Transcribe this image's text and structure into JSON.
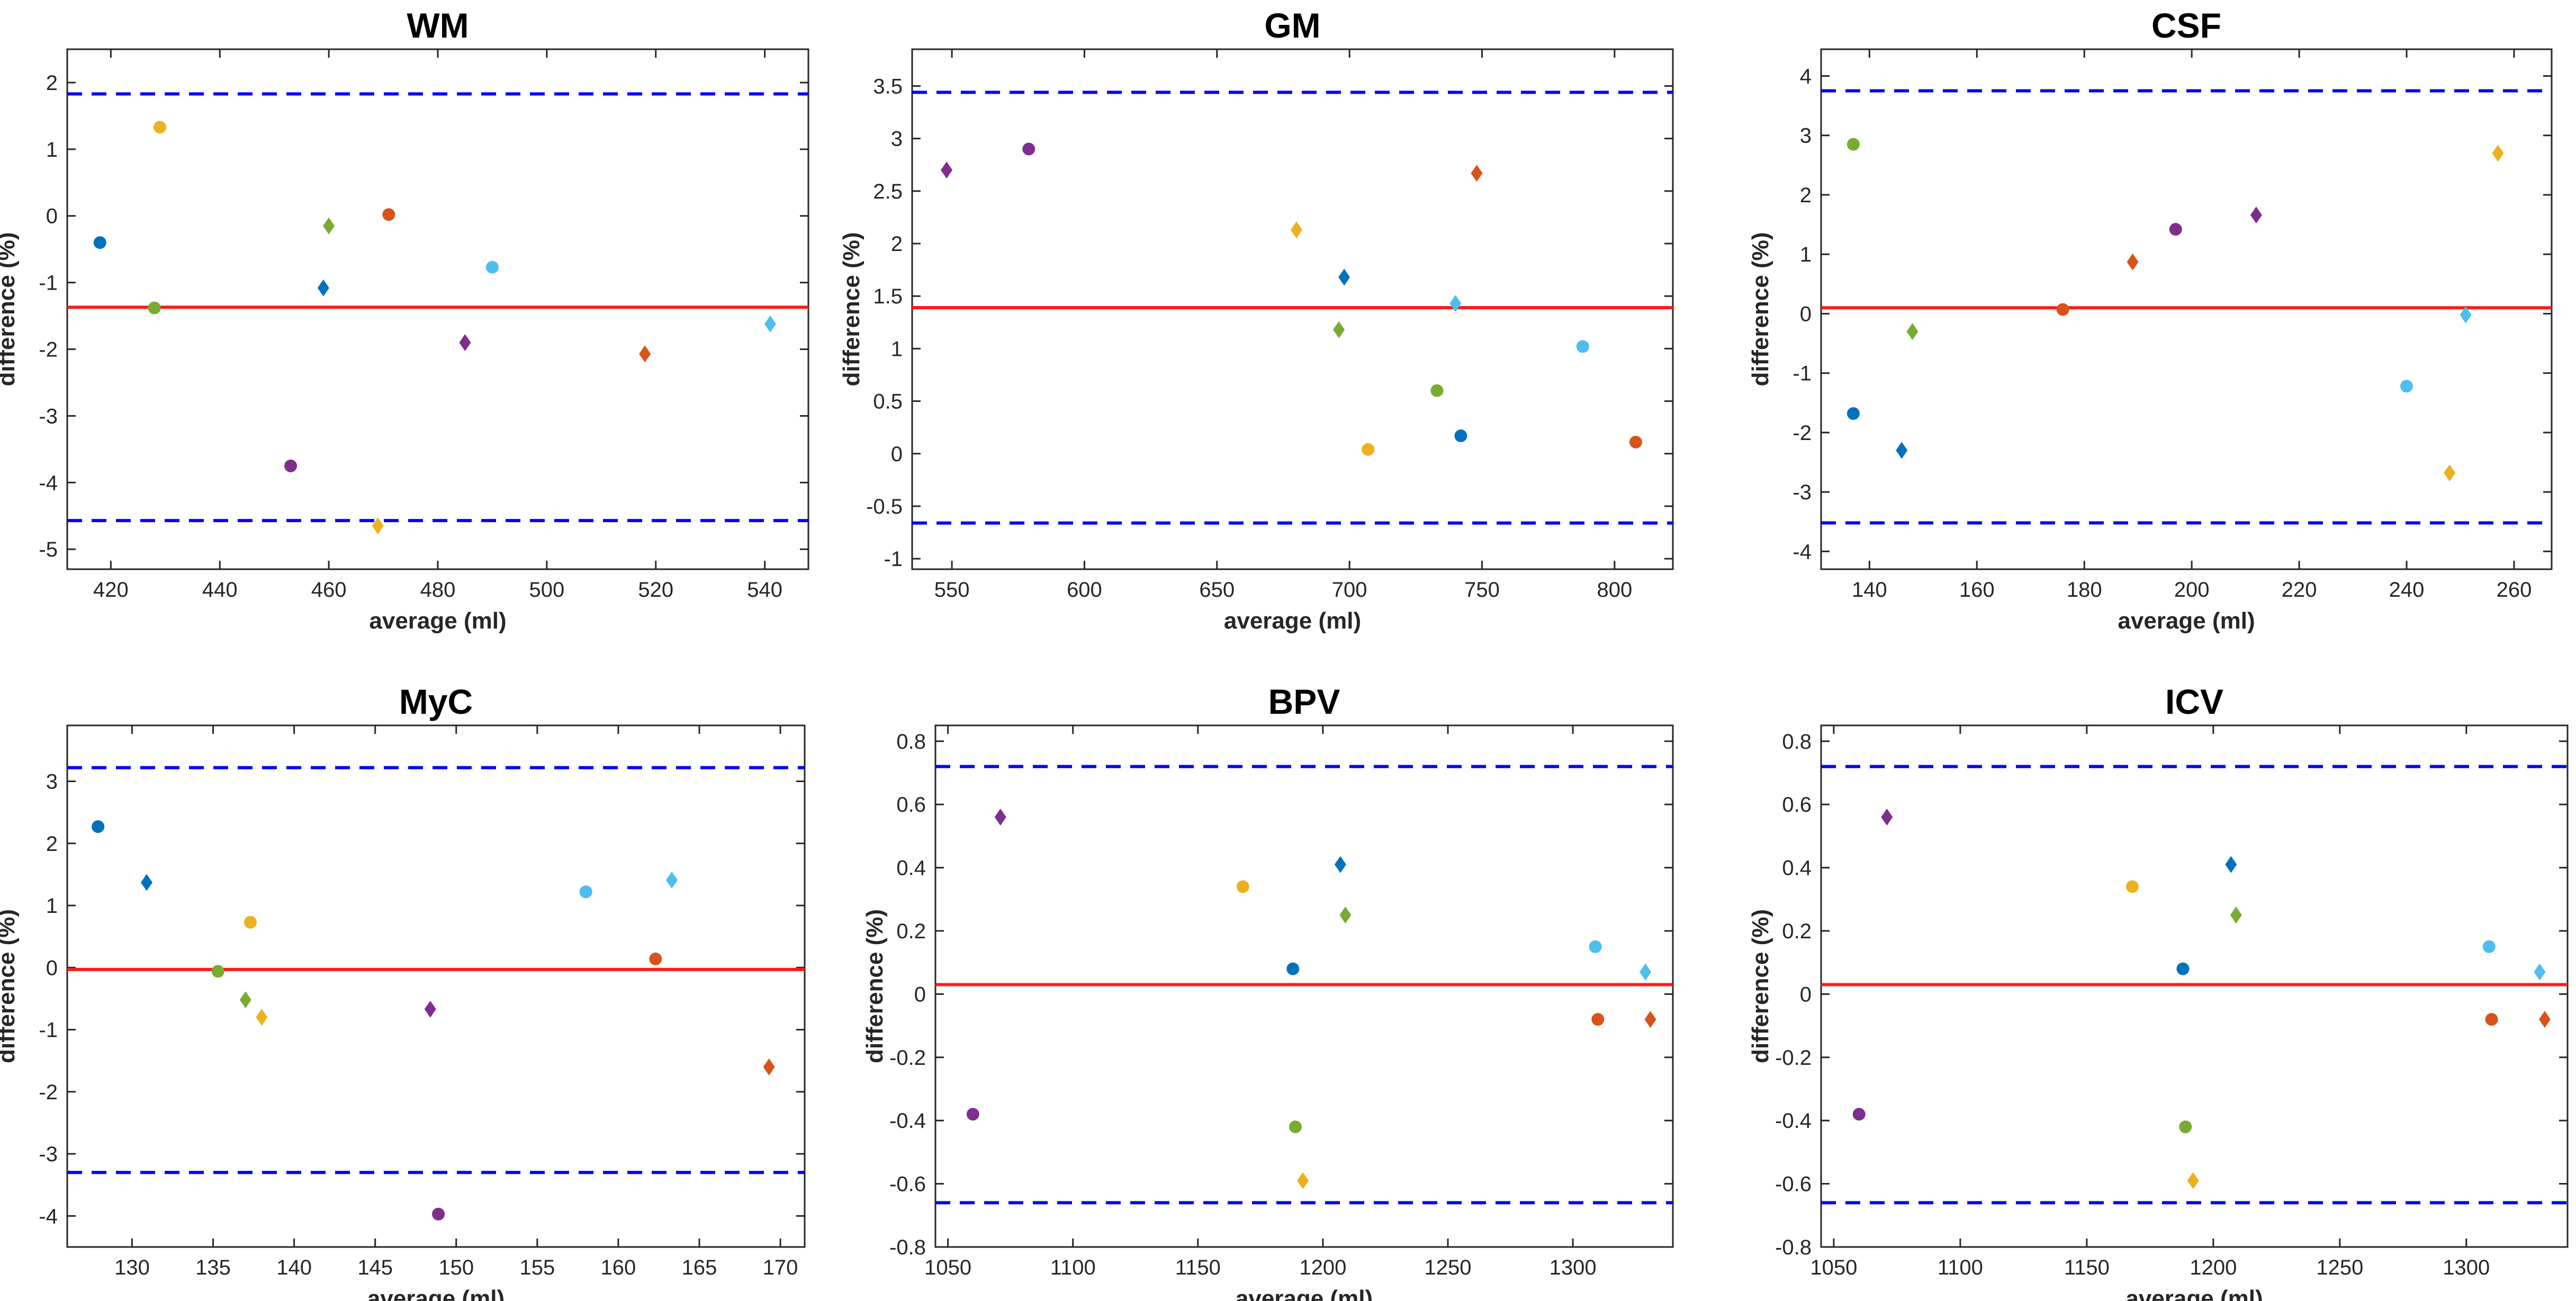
{
  "colors": {
    "mean_line": "#ff1a1a",
    "loa_line": "#0000ff",
    "series": [
      "#0072BD",
      "#77AC30",
      "#EDB120",
      "#7E2F8E",
      "#D95319",
      "#4DBEEE"
    ]
  },
  "chart_data": [
    {
      "type": "scatter",
      "title": "WM",
      "xlabel": "average (ml)",
      "ylabel": "difference (%)",
      "xlim": [
        412,
        548
      ],
      "ylim": [
        -5.3,
        2.5
      ],
      "xticks": [
        420,
        440,
        460,
        480,
        500,
        520,
        540
      ],
      "yticks": [
        -5,
        -4,
        -3,
        -2,
        -1,
        0,
        1,
        2
      ],
      "mean": -1.37,
      "upper_loa": 1.83,
      "lower_loa": -4.57,
      "points": [
        {
          "x": 418,
          "y": -0.4,
          "marker": "circle",
          "color": "#0072BD"
        },
        {
          "x": 428,
          "y": -1.38,
          "marker": "circle",
          "color": "#77AC30"
        },
        {
          "x": 429,
          "y": 1.33,
          "marker": "circle",
          "color": "#EDB120"
        },
        {
          "x": 453,
          "y": -3.75,
          "marker": "circle",
          "color": "#7E2F8E"
        },
        {
          "x": 459,
          "y": -1.08,
          "marker": "diamond",
          "color": "#0072BD"
        },
        {
          "x": 460,
          "y": -0.15,
          "marker": "diamond",
          "color": "#77AC30"
        },
        {
          "x": 469,
          "y": -4.65,
          "marker": "diamond",
          "color": "#EDB120"
        },
        {
          "x": 471,
          "y": 0.02,
          "marker": "circle",
          "color": "#D95319"
        },
        {
          "x": 485,
          "y": -1.9,
          "marker": "diamond",
          "color": "#7E2F8E"
        },
        {
          "x": 490,
          "y": -0.77,
          "marker": "circle",
          "color": "#4DBEEE"
        },
        {
          "x": 518,
          "y": -2.07,
          "marker": "diamond",
          "color": "#D95319"
        },
        {
          "x": 541,
          "y": -1.62,
          "marker": "diamond",
          "color": "#4DBEEE"
        }
      ]
    },
    {
      "type": "scatter",
      "title": "GM",
      "xlabel": "average (ml)",
      "ylabel": "difference (%)",
      "xlim": [
        535,
        822
      ],
      "ylim": [
        -1.1,
        3.85
      ],
      "xticks": [
        550,
        600,
        650,
        700,
        750,
        800
      ],
      "yticks": [
        -1,
        -0.5,
        0,
        0.5,
        1,
        1.5,
        2,
        2.5,
        3,
        3.5
      ],
      "mean": 1.39,
      "upper_loa": 3.44,
      "lower_loa": -0.66,
      "points": [
        {
          "x": 548,
          "y": 2.7,
          "marker": "diamond",
          "color": "#7E2F8E"
        },
        {
          "x": 579,
          "y": 2.9,
          "marker": "circle",
          "color": "#7E2F8E"
        },
        {
          "x": 680,
          "y": 2.13,
          "marker": "diamond",
          "color": "#EDB120"
        },
        {
          "x": 696,
          "y": 1.18,
          "marker": "diamond",
          "color": "#77AC30"
        },
        {
          "x": 698,
          "y": 1.68,
          "marker": "diamond",
          "color": "#0072BD"
        },
        {
          "x": 707,
          "y": 0.04,
          "marker": "circle",
          "color": "#EDB120"
        },
        {
          "x": 733,
          "y": 0.6,
          "marker": "circle",
          "color": "#77AC30"
        },
        {
          "x": 740,
          "y": 1.43,
          "marker": "diamond",
          "color": "#4DBEEE"
        },
        {
          "x": 742,
          "y": 0.17,
          "marker": "circle",
          "color": "#0072BD"
        },
        {
          "x": 748,
          "y": 2.67,
          "marker": "diamond",
          "color": "#D95319"
        },
        {
          "x": 788,
          "y": 1.02,
          "marker": "circle",
          "color": "#4DBEEE"
        },
        {
          "x": 808,
          "y": 0.11,
          "marker": "circle",
          "color": "#D95319"
        }
      ]
    },
    {
      "type": "scatter",
      "title": "CSF",
      "xlabel": "average (ml)",
      "ylabel": "difference (%)",
      "xlim": [
        131,
        267
      ],
      "ylim": [
        -4.3,
        4.45
      ],
      "xticks": [
        140,
        160,
        180,
        200,
        220,
        240,
        260
      ],
      "yticks": [
        -4,
        -3,
        -2,
        -1,
        0,
        1,
        2,
        3,
        4
      ],
      "mean": 0.1,
      "upper_loa": 3.75,
      "lower_loa": -3.52,
      "points": [
        {
          "x": 137,
          "y": -1.68,
          "marker": "circle",
          "color": "#0072BD"
        },
        {
          "x": 137,
          "y": 2.85,
          "marker": "circle",
          "color": "#77AC30"
        },
        {
          "x": 146,
          "y": -2.3,
          "marker": "diamond",
          "color": "#0072BD"
        },
        {
          "x": 148,
          "y": -0.3,
          "marker": "diamond",
          "color": "#77AC30"
        },
        {
          "x": 176,
          "y": 0.07,
          "marker": "circle",
          "color": "#D95319"
        },
        {
          "x": 189,
          "y": 0.87,
          "marker": "diamond",
          "color": "#D95319"
        },
        {
          "x": 197,
          "y": 1.42,
          "marker": "circle",
          "color": "#7E2F8E"
        },
        {
          "x": 212,
          "y": 1.66,
          "marker": "diamond",
          "color": "#7E2F8E"
        },
        {
          "x": 240,
          "y": -1.22,
          "marker": "circle",
          "color": "#4DBEEE"
        },
        {
          "x": 248,
          "y": -2.68,
          "marker": "diamond",
          "color": "#EDB120"
        },
        {
          "x": 251,
          "y": -0.02,
          "marker": "diamond",
          "color": "#4DBEEE"
        },
        {
          "x": 257,
          "y": 2.7,
          "marker": "diamond",
          "color": "#EDB120"
        }
      ]
    },
    {
      "type": "scatter",
      "title": "MyC",
      "xlabel": "average (ml)",
      "ylabel": "difference (%)",
      "xlim": [
        126,
        171.5
      ],
      "ylim": [
        -4.5,
        3.9
      ],
      "xticks": [
        130,
        135,
        140,
        145,
        150,
        155,
        160,
        165,
        170
      ],
      "yticks": [
        -4,
        -3,
        -2,
        -1,
        0,
        1,
        2,
        3
      ],
      "mean": -0.03,
      "upper_loa": 3.22,
      "lower_loa": -3.3,
      "points": [
        {
          "x": 127.9,
          "y": 2.27,
          "marker": "circle",
          "color": "#0072BD"
        },
        {
          "x": 130.9,
          "y": 1.37,
          "marker": "diamond",
          "color": "#0072BD"
        },
        {
          "x": 135.3,
          "y": -0.06,
          "marker": "circle",
          "color": "#77AC30"
        },
        {
          "x": 137.0,
          "y": -0.52,
          "marker": "diamond",
          "color": "#77AC30"
        },
        {
          "x": 137.3,
          "y": 0.73,
          "marker": "circle",
          "color": "#EDB120"
        },
        {
          "x": 138.0,
          "y": -0.8,
          "marker": "diamond",
          "color": "#EDB120"
        },
        {
          "x": 148.4,
          "y": -0.67,
          "marker": "diamond",
          "color": "#7E2F8E"
        },
        {
          "x": 148.9,
          "y": -3.97,
          "marker": "circle",
          "color": "#7E2F8E"
        },
        {
          "x": 158.0,
          "y": 1.22,
          "marker": "circle",
          "color": "#4DBEEE"
        },
        {
          "x": 162.3,
          "y": 0.14,
          "marker": "circle",
          "color": "#D95319"
        },
        {
          "x": 163.3,
          "y": 1.41,
          "marker": "diamond",
          "color": "#4DBEEE"
        },
        {
          "x": 169.3,
          "y": -1.6,
          "marker": "diamond",
          "color": "#D95319"
        }
      ]
    },
    {
      "type": "scatter",
      "title": "BPV",
      "xlabel": "average (ml)",
      "ylabel": "difference (%)",
      "xlim": [
        1045,
        1340
      ],
      "ylim": [
        -0.8,
        0.85
      ],
      "xticks": [
        1050,
        1100,
        1150,
        1200,
        1250,
        1300
      ],
      "yticks": [
        -0.8,
        -0.6,
        -0.4,
        -0.2,
        0,
        0.2,
        0.4,
        0.6,
        0.8
      ],
      "mean": 0.03,
      "upper_loa": 0.72,
      "lower_loa": -0.66,
      "points": [
        {
          "x": 1060,
          "y": -0.38,
          "marker": "circle",
          "color": "#7E2F8E"
        },
        {
          "x": 1071,
          "y": 0.56,
          "marker": "diamond",
          "color": "#7E2F8E"
        },
        {
          "x": 1168,
          "y": 0.34,
          "marker": "circle",
          "color": "#EDB120"
        },
        {
          "x": 1188,
          "y": 0.08,
          "marker": "circle",
          "color": "#0072BD"
        },
        {
          "x": 1189,
          "y": -0.42,
          "marker": "circle",
          "color": "#77AC30"
        },
        {
          "x": 1192,
          "y": -0.59,
          "marker": "diamond",
          "color": "#EDB120"
        },
        {
          "x": 1207,
          "y": 0.41,
          "marker": "diamond",
          "color": "#0072BD"
        },
        {
          "x": 1209,
          "y": 0.25,
          "marker": "diamond",
          "color": "#77AC30"
        },
        {
          "x": 1309,
          "y": 0.15,
          "marker": "circle",
          "color": "#4DBEEE"
        },
        {
          "x": 1310,
          "y": -0.08,
          "marker": "circle",
          "color": "#D95319"
        },
        {
          "x": 1329,
          "y": 0.07,
          "marker": "diamond",
          "color": "#4DBEEE"
        },
        {
          "x": 1331,
          "y": -0.08,
          "marker": "diamond",
          "color": "#D95319"
        }
      ]
    },
    {
      "type": "scatter",
      "title": "ICV",
      "xlabel": "average (ml)",
      "ylabel": "difference (%)",
      "xlim": [
        1045,
        1340
      ],
      "ylim": [
        -0.8,
        0.85
      ],
      "xticks": [
        1050,
        1100,
        1150,
        1200,
        1250,
        1300
      ],
      "yticks": [
        -0.8,
        -0.6,
        -0.4,
        -0.2,
        0,
        0.2,
        0.4,
        0.6,
        0.8
      ],
      "mean": 0.03,
      "upper_loa": 0.72,
      "lower_loa": -0.66,
      "points": [
        {
          "x": 1060,
          "y": -0.38,
          "marker": "circle",
          "color": "#7E2F8E"
        },
        {
          "x": 1071,
          "y": 0.56,
          "marker": "diamond",
          "color": "#7E2F8E"
        },
        {
          "x": 1168,
          "y": 0.34,
          "marker": "circle",
          "color": "#EDB120"
        },
        {
          "x": 1188,
          "y": 0.08,
          "marker": "circle",
          "color": "#0072BD"
        },
        {
          "x": 1189,
          "y": -0.42,
          "marker": "circle",
          "color": "#77AC30"
        },
        {
          "x": 1192,
          "y": -0.59,
          "marker": "diamond",
          "color": "#EDB120"
        },
        {
          "x": 1207,
          "y": 0.41,
          "marker": "diamond",
          "color": "#0072BD"
        },
        {
          "x": 1209,
          "y": 0.25,
          "marker": "diamond",
          "color": "#77AC30"
        },
        {
          "x": 1309,
          "y": 0.15,
          "marker": "circle",
          "color": "#4DBEEE"
        },
        {
          "x": 1310,
          "y": -0.08,
          "marker": "circle",
          "color": "#D95319"
        },
        {
          "x": 1329,
          "y": 0.07,
          "marker": "diamond",
          "color": "#4DBEEE"
        },
        {
          "x": 1331,
          "y": -0.08,
          "marker": "diamond",
          "color": "#D95319"
        }
      ]
    }
  ]
}
